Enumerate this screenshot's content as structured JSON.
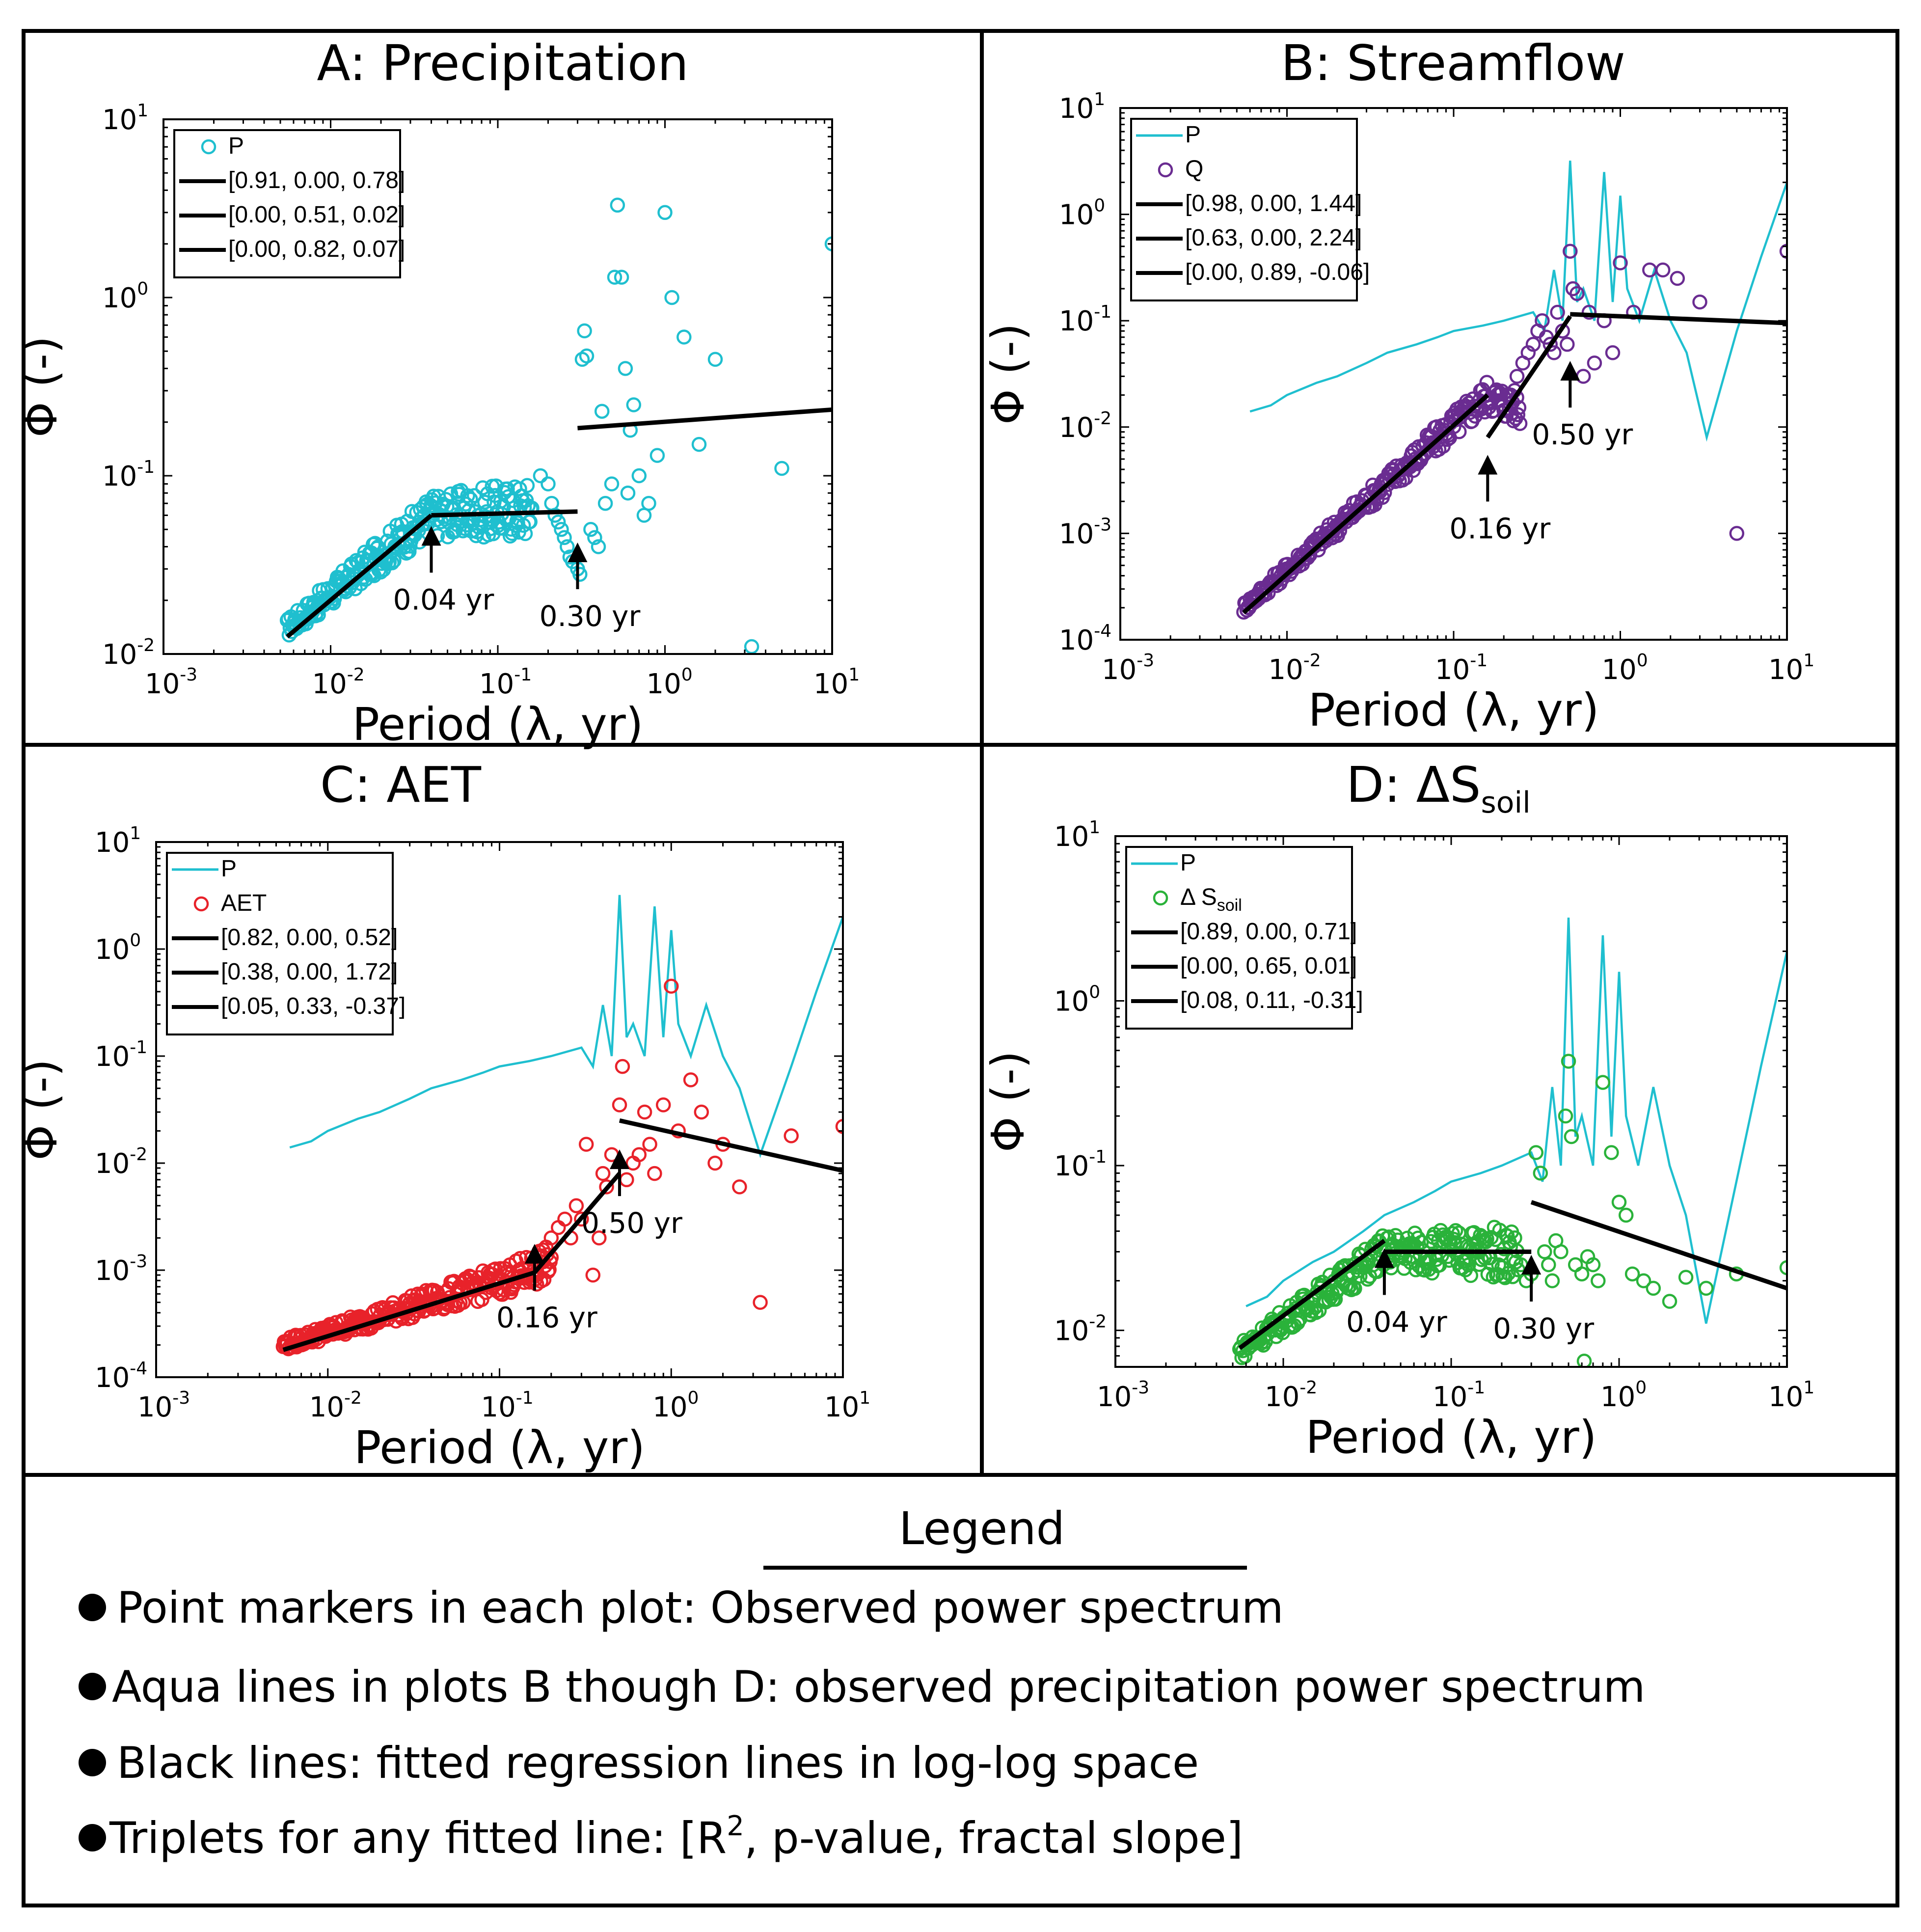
{
  "colors": {
    "precipitation": "#1fbfcf",
    "streamflow": "#6a2c91",
    "aet": "#e8222a",
    "soil": "#2ab23a",
    "fit_line": "#000000"
  },
  "legend_section": {
    "title": "Legend",
    "items": [
      {
        "text": "Point markers in each plot: Observed power spectrum"
      },
      {
        "text": "Aqua lines in plots B though D:  observed precipitation power spectrum"
      },
      {
        "text": "Black lines: fitted regression lines in log-log space"
      },
      {
        "text_before": "Triplets for any fitted line: [R",
        "sup": "2",
        "text_after": ", p-value, fractal slope]"
      }
    ]
  },
  "chart_data": [
    {
      "type": "scatter",
      "panel": "A",
      "title": "A: Precipitation",
      "xlabel": "Period (λ, yr)",
      "ylabel": "Φ (-)",
      "xscale": "log",
      "yscale": "log",
      "xlim": [
        0.001,
        10
      ],
      "ylim": [
        0.01,
        10
      ],
      "x_ticks": [
        "10",
        "10",
        "10",
        "10",
        "10"
      ],
      "x_tick_exps": [
        "-3",
        "-2",
        "-1",
        "0",
        "1"
      ],
      "y_ticks": [
        "10",
        "10",
        "10",
        "10"
      ],
      "y_tick_exps": [
        "-2",
        "-1",
        "0",
        "1"
      ],
      "legend_position": "top-left",
      "legend": [
        {
          "kind": "marker",
          "label": "P",
          "color": "#1fbfcf"
        },
        {
          "kind": "line",
          "label": "[0.91, 0.00, 0.78]"
        },
        {
          "kind": "line",
          "label": "[0.00, 0.51, 0.02]"
        },
        {
          "kind": "line",
          "label": "[0.00, 0.82, 0.07]"
        }
      ],
      "series": [
        {
          "name": "P",
          "kind": "scatter",
          "color": "#1fbfcf",
          "dense": true,
          "start": [
            0.0055,
            0.014
          ],
          "break": [
            0.04,
            0.06
          ],
          "plateau_end": [
            0.16,
            0.065
          ]
        },
        {
          "name": "P",
          "kind": "scatter",
          "color": "#1fbfcf",
          "x": [
            0.18,
            0.2,
            0.21,
            0.22,
            0.23,
            0.24,
            0.25,
            0.26,
            0.27,
            0.28,
            0.3,
            0.31,
            0.32,
            0.33,
            0.34,
            0.36,
            0.38,
            0.4,
            0.42,
            0.44,
            0.48,
            0.5,
            0.52,
            0.55,
            0.58,
            0.6,
            0.62,
            0.65,
            0.7,
            0.75,
            0.8,
            0.9,
            1.0,
            1.1,
            1.3,
            1.6,
            2.0,
            3.3,
            5.0,
            10.0
          ],
          "y": [
            0.1,
            0.09,
            0.07,
            0.06,
            0.055,
            0.05,
            0.045,
            0.04,
            0.035,
            0.033,
            0.03,
            0.028,
            0.45,
            0.65,
            0.47,
            0.05,
            0.045,
            0.04,
            0.23,
            0.07,
            0.09,
            1.3,
            3.3,
            1.3,
            0.4,
            0.08,
            0.18,
            0.25,
            0.1,
            0.06,
            0.07,
            0.13,
            3.0,
            1.0,
            0.6,
            0.15,
            0.45,
            0.011,
            0.11,
            2.0
          ]
        },
        {
          "name": "fit 1",
          "kind": "fit",
          "x": [
            0.0055,
            0.04
          ],
          "y": [
            0.0125,
            0.06
          ]
        },
        {
          "name": "fit 2",
          "kind": "fit",
          "x": [
            0.04,
            0.3
          ],
          "y": [
            0.06,
            0.063
          ]
        },
        {
          "name": "fit 3",
          "kind": "fit",
          "x": [
            0.3,
            10.0
          ],
          "y": [
            0.185,
            0.235
          ]
        }
      ],
      "annotations": [
        {
          "label": "0.04 yr",
          "x": 0.04,
          "y": 0.026
        },
        {
          "label": "0.30 yr",
          "x": 0.3,
          "y": 0.021
        }
      ]
    },
    {
      "type": "scatter",
      "panel": "B",
      "title": "B: Streamflow",
      "xlabel": "Period (λ, yr)",
      "ylabel": "Φ (-)",
      "xscale": "log",
      "yscale": "log",
      "xlim": [
        0.001,
        10
      ],
      "ylim": [
        0.0001,
        10
      ],
      "x_ticks": [
        "10",
        "10",
        "10",
        "10",
        "10"
      ],
      "x_tick_exps": [
        "-3",
        "-2",
        "-1",
        "0",
        "1"
      ],
      "y_ticks": [
        "10",
        "10",
        "10",
        "10",
        "10",
        "10"
      ],
      "y_tick_exps": [
        "-4",
        "-3",
        "-2",
        "-1",
        "0",
        "1"
      ],
      "legend_position": "top-left",
      "legend": [
        {
          "kind": "pline",
          "label": "P",
          "color": "#1fbfcf"
        },
        {
          "kind": "marker",
          "label": "Q",
          "color": "#6a2c91"
        },
        {
          "kind": "line",
          "label": "[0.98, 0.00, 1.44]"
        },
        {
          "kind": "line",
          "label": "[0.63, 0.00, 2.24]"
        },
        {
          "kind": "line",
          "label": "[0.00, 0.89, -0.06]"
        }
      ],
      "series": [
        {
          "name": "P",
          "kind": "line",
          "color": "#1fbfcf",
          "x": [
            0.006,
            0.008,
            0.01,
            0.015,
            0.02,
            0.03,
            0.04,
            0.06,
            0.08,
            0.1,
            0.15,
            0.2,
            0.3,
            0.35,
            0.4,
            0.45,
            0.5,
            0.55,
            0.6,
            0.7,
            0.8,
            0.9,
            1.0,
            1.1,
            1.3,
            1.6,
            2.0,
            2.5,
            3.3,
            5.0,
            7.0,
            10.0
          ],
          "y": [
            0.014,
            0.016,
            0.02,
            0.026,
            0.03,
            0.04,
            0.05,
            0.06,
            0.07,
            0.08,
            0.09,
            0.1,
            0.12,
            0.08,
            0.3,
            0.1,
            3.2,
            0.15,
            0.2,
            0.1,
            2.5,
            0.15,
            1.5,
            0.2,
            0.1,
            0.3,
            0.1,
            0.05,
            0.008,
            0.08,
            0.4,
            2.0
          ]
        },
        {
          "name": "Q",
          "kind": "scatter",
          "color": "#6a2c91",
          "dense": true,
          "start": [
            0.0055,
            0.0002
          ],
          "break": [
            0.16,
            0.02
          ],
          "plateau_end": [
            0.25,
            0.015
          ]
        },
        {
          "name": "Q",
          "kind": "scatter",
          "color": "#6a2c91",
          "x": [
            0.22,
            0.24,
            0.26,
            0.28,
            0.3,
            0.32,
            0.34,
            0.36,
            0.38,
            0.4,
            0.42,
            0.45,
            0.48,
            0.5,
            0.52,
            0.55,
            0.6,
            0.65,
            0.7,
            0.8,
            0.9,
            1.0,
            1.2,
            1.5,
            1.8,
            2.2,
            3.0,
            5.0,
            10.0
          ],
          "y": [
            0.02,
            0.03,
            0.04,
            0.05,
            0.06,
            0.08,
            0.1,
            0.07,
            0.06,
            0.05,
            0.12,
            0.08,
            0.06,
            0.45,
            0.2,
            0.18,
            0.03,
            0.12,
            0.04,
            0.1,
            0.05,
            0.35,
            0.12,
            0.3,
            0.3,
            0.25,
            0.15,
            0.001,
            0.45
          ]
        },
        {
          "name": "fit 1",
          "kind": "fit",
          "x": [
            0.0055,
            0.16
          ],
          "y": [
            0.00018,
            0.02
          ]
        },
        {
          "name": "fit 2",
          "kind": "fit",
          "x": [
            0.16,
            0.5
          ],
          "y": [
            0.008,
            0.11
          ]
        },
        {
          "name": "fit 3",
          "kind": "fit",
          "x": [
            0.5,
            10.0
          ],
          "y": [
            0.115,
            0.095
          ]
        }
      ],
      "annotations": [
        {
          "label": "0.16 yr",
          "x": 0.16,
          "y": 0.0017
        },
        {
          "label": "0.50 yr",
          "x": 0.5,
          "y": 0.013
        }
      ]
    },
    {
      "type": "scatter",
      "panel": "C",
      "title": "C: AET",
      "xlabel": "Period (λ, yr)",
      "ylabel": "Φ (-)",
      "xscale": "log",
      "yscale": "log",
      "xlim": [
        0.001,
        10
      ],
      "ylim": [
        0.0001,
        10
      ],
      "x_ticks": [
        "10",
        "10",
        "10",
        "10",
        "10"
      ],
      "x_tick_exps": [
        "-3",
        "-2",
        "-1",
        "0",
        "1"
      ],
      "y_ticks": [
        "10",
        "10",
        "10",
        "10",
        "10",
        "10"
      ],
      "y_tick_exps": [
        "-4",
        "-3",
        "-2",
        "-1",
        "0",
        "1"
      ],
      "legend_position": "top-left",
      "legend": [
        {
          "kind": "pline",
          "label": "P",
          "color": "#1fbfcf"
        },
        {
          "kind": "marker",
          "label": "AET",
          "color": "#e8222a"
        },
        {
          "kind": "line",
          "label": "[0.82, 0.00, 0.52]"
        },
        {
          "kind": "line",
          "label": "[0.38, 0.00, 1.72]"
        },
        {
          "kind": "line",
          "label": "[0.05, 0.33, -0.37]"
        }
      ],
      "series": [
        {
          "name": "P",
          "kind": "line",
          "color": "#1fbfcf",
          "x": [
            0.006,
            0.008,
            0.01,
            0.015,
            0.02,
            0.03,
            0.04,
            0.06,
            0.08,
            0.1,
            0.15,
            0.2,
            0.3,
            0.35,
            0.4,
            0.45,
            0.5,
            0.55,
            0.6,
            0.7,
            0.8,
            0.9,
            1.0,
            1.1,
            1.3,
            1.6,
            2.0,
            2.5,
            3.3,
            5.0,
            7.0,
            10.0
          ],
          "y": [
            0.014,
            0.016,
            0.02,
            0.026,
            0.03,
            0.04,
            0.05,
            0.06,
            0.07,
            0.08,
            0.09,
            0.1,
            0.12,
            0.08,
            0.3,
            0.1,
            3.2,
            0.15,
            0.2,
            0.1,
            2.5,
            0.15,
            1.5,
            0.2,
            0.1,
            0.3,
            0.1,
            0.05,
            0.012,
            0.08,
            0.4,
            2.0
          ]
        },
        {
          "name": "AET",
          "kind": "scatter",
          "color": "#e8222a",
          "dense": true,
          "start": [
            0.0055,
            0.0002
          ],
          "break": [
            0.16,
            0.001
          ],
          "plateau_end": [
            0.2,
            0.0012
          ]
        },
        {
          "name": "AET",
          "kind": "scatter",
          "color": "#e8222a",
          "x": [
            0.17,
            0.18,
            0.2,
            0.22,
            0.24,
            0.26,
            0.28,
            0.3,
            0.32,
            0.35,
            0.38,
            0.4,
            0.42,
            0.45,
            0.5,
            0.52,
            0.55,
            0.6,
            0.65,
            0.7,
            0.75,
            0.8,
            0.9,
            1.0,
            1.1,
            1.3,
            1.5,
            1.8,
            2.0,
            2.5,
            3.3,
            5.0,
            10.0
          ],
          "y": [
            0.0015,
            0.0012,
            0.002,
            0.0025,
            0.003,
            0.002,
            0.004,
            0.003,
            0.015,
            0.0009,
            0.002,
            0.008,
            0.006,
            0.012,
            0.035,
            0.08,
            0.007,
            0.01,
            0.012,
            0.03,
            0.015,
            0.008,
            0.035,
            0.45,
            0.02,
            0.06,
            0.03,
            0.01,
            0.015,
            0.006,
            0.0005,
            0.018,
            0.022
          ]
        },
        {
          "name": "fit 1",
          "kind": "fit",
          "x": [
            0.0055,
            0.16
          ],
          "y": [
            0.00018,
            0.00095
          ]
        },
        {
          "name": "fit 2",
          "kind": "fit",
          "x": [
            0.16,
            0.5
          ],
          "y": [
            0.00095,
            0.008
          ]
        },
        {
          "name": "fit 3",
          "kind": "fit",
          "x": [
            0.5,
            10.0
          ],
          "y": [
            0.025,
            0.0085
          ]
        }
      ],
      "annotations": [
        {
          "label": "0.16 yr",
          "x": 0.16,
          "y": 0.00055
        },
        {
          "label": "0.50 yr",
          "x": 0.5,
          "y": 0.0042
        }
      ]
    },
    {
      "type": "scatter",
      "panel": "D",
      "title_main": "D: ΔS",
      "title_sub": "soil",
      "xlabel": "Period (λ, yr)",
      "ylabel": "Φ (-)",
      "xscale": "log",
      "yscale": "log",
      "xlim": [
        0.001,
        10
      ],
      "ylim": [
        0.006,
        10
      ],
      "x_ticks": [
        "10",
        "10",
        "10",
        "10",
        "10"
      ],
      "x_tick_exps": [
        "-3",
        "-2",
        "-1",
        "0",
        "1"
      ],
      "y_ticks": [
        "10",
        "10",
        "10",
        "10"
      ],
      "y_tick_exps": [
        "-2",
        "-1",
        "0",
        "1"
      ],
      "legend_position": "top-left",
      "legend": [
        {
          "kind": "pline",
          "label": "P",
          "color": "#1fbfcf"
        },
        {
          "kind": "marker",
          "label": "Δ S",
          "label_sub": "soil",
          "color": "#2ab23a"
        },
        {
          "kind": "line",
          "label": "[0.89, 0.00, 0.71]"
        },
        {
          "kind": "line",
          "label": "[0.00, 0.65, 0.01]"
        },
        {
          "kind": "line",
          "label": "[0.08, 0.11, -0.31]"
        }
      ],
      "series": [
        {
          "name": "P",
          "kind": "line",
          "color": "#1fbfcf",
          "x": [
            0.006,
            0.008,
            0.01,
            0.015,
            0.02,
            0.03,
            0.04,
            0.06,
            0.08,
            0.1,
            0.15,
            0.2,
            0.3,
            0.35,
            0.4,
            0.45,
            0.5,
            0.55,
            0.6,
            0.7,
            0.8,
            0.9,
            1.0,
            1.1,
            1.3,
            1.6,
            2.0,
            2.5,
            3.3,
            5.0,
            7.0,
            10.0
          ],
          "y": [
            0.014,
            0.016,
            0.02,
            0.026,
            0.03,
            0.04,
            0.05,
            0.06,
            0.07,
            0.08,
            0.09,
            0.1,
            0.12,
            0.08,
            0.3,
            0.1,
            3.2,
            0.15,
            0.2,
            0.1,
            2.5,
            0.15,
            1.5,
            0.2,
            0.1,
            0.3,
            0.1,
            0.05,
            0.011,
            0.08,
            0.4,
            2.0
          ]
        },
        {
          "name": "Δ S soil",
          "kind": "scatter",
          "color": "#2ab23a",
          "dense": true,
          "start": [
            0.0055,
            0.0075
          ],
          "break": [
            0.04,
            0.03
          ],
          "plateau_end": [
            0.25,
            0.03
          ]
        },
        {
          "name": "Δ S soil",
          "kind": "scatter",
          "color": "#2ab23a",
          "x": [
            0.26,
            0.28,
            0.3,
            0.32,
            0.34,
            0.36,
            0.38,
            0.4,
            0.42,
            0.45,
            0.48,
            0.5,
            0.52,
            0.55,
            0.6,
            0.62,
            0.65,
            0.7,
            0.75,
            0.8,
            0.9,
            1.0,
            1.1,
            1.2,
            1.4,
            1.6,
            2.0,
            2.5,
            3.3,
            5.0,
            10.0
          ],
          "y": [
            0.025,
            0.02,
            0.022,
            0.12,
            0.09,
            0.03,
            0.025,
            0.02,
            0.035,
            0.03,
            0.2,
            0.43,
            0.15,
            0.025,
            0.022,
            0.0065,
            0.028,
            0.025,
            0.02,
            0.32,
            0.12,
            0.06,
            0.05,
            0.022,
            0.02,
            0.018,
            0.015,
            0.021,
            0.018,
            0.022,
            0.024
          ]
        },
        {
          "name": "fit 1",
          "kind": "fit",
          "x": [
            0.0055,
            0.04
          ],
          "y": [
            0.0078,
            0.035
          ]
        },
        {
          "name": "fit 2",
          "kind": "fit",
          "x": [
            0.04,
            0.3
          ],
          "y": [
            0.03,
            0.03
          ]
        },
        {
          "name": "fit 3",
          "kind": "fit",
          "x": [
            0.3,
            10.0
          ],
          "y": [
            0.06,
            0.018
          ]
        }
      ],
      "annotations": [
        {
          "label": "0.04 yr",
          "x": 0.04,
          "y": 0.0148
        },
        {
          "label": "0.30 yr",
          "x": 0.3,
          "y": 0.0135
        }
      ]
    }
  ]
}
